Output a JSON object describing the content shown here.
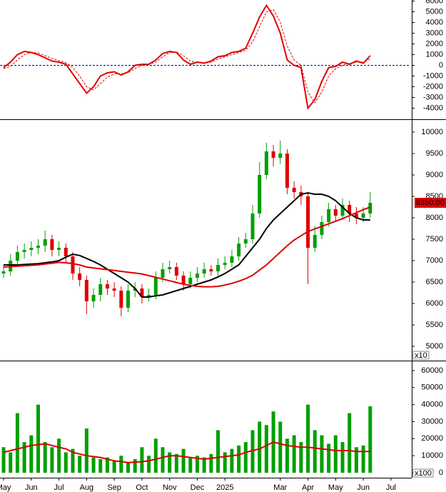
{
  "chart_data": [
    {
      "type": "line",
      "x": [
        0,
        0.25,
        0.5,
        0.75,
        1,
        1.25,
        1.5,
        1.75,
        2,
        2.25,
        2.5,
        2.75,
        3,
        3.25,
        3.5,
        3.75,
        4,
        4.25,
        4.5,
        4.75,
        5,
        5.25,
        5.5,
        5.75,
        6,
        6.25,
        6.5,
        6.75,
        7,
        7.25,
        7.5,
        7.75,
        8,
        8.25,
        8.5,
        8.75,
        9,
        9.25,
        9.5,
        9.75,
        10,
        10.25,
        10.5,
        10.75,
        11,
        11.25,
        11.5,
        11.75,
        12,
        12.25,
        12.5,
        12.75,
        13,
        13.25
      ],
      "xlim": [
        -0.13,
        14.7
      ],
      "ylim": [
        -4900,
        6100
      ],
      "yticks": [
        6000,
        5000,
        4000,
        3000,
        2000,
        1000,
        0,
        -1000,
        -2000,
        -3000,
        -4000
      ],
      "zero_line_color": "#0000cc",
      "series": [
        {
          "color": "#e00000",
          "values": [
            -200,
            300,
            1000,
            1300,
            1200,
            1000,
            700,
            400,
            300,
            100,
            -800,
            -1700,
            -2600,
            -2000,
            -1000,
            -700,
            -600,
            -900,
            -600,
            0,
            100,
            100,
            500,
            1100,
            1300,
            1200,
            500,
            100,
            300,
            200,
            400,
            800,
            900,
            1200,
            1300,
            1600,
            3000,
            4500,
            5600,
            4600,
            3000,
            500,
            0,
            -200,
            -4000,
            -3200,
            -1500,
            -200,
            -100,
            300,
            100,
            400,
            200,
            900
          ]
        },
        {
          "color": "#e00000",
          "dashed": true,
          "values": [
            -300,
            -100,
            500,
            1000,
            1200,
            1150,
            900,
            650,
            450,
            250,
            -200,
            -1000,
            -2000,
            -2300,
            -1700,
            -1100,
            -800,
            -800,
            -700,
            -300,
            0,
            100,
            300,
            800,
            1200,
            1250,
            900,
            400,
            250,
            200,
            300,
            600,
            800,
            1000,
            1200,
            1400,
            2200,
            3600,
            5000,
            5200,
            4000,
            1800,
            500,
            0,
            -2500,
            -3500,
            -2500,
            -1000,
            -300,
            0,
            200,
            300,
            300,
            600
          ]
        }
      ]
    },
    {
      "type": "candlestick",
      "x": [
        0,
        0.25,
        0.5,
        0.75,
        1,
        1.25,
        1.5,
        1.75,
        2,
        2.25,
        2.5,
        2.75,
        3,
        3.25,
        3.5,
        3.75,
        4,
        4.25,
        4.5,
        4.75,
        5,
        5.25,
        5.5,
        5.75,
        6,
        6.25,
        6.5,
        6.75,
        7,
        7.25,
        7.5,
        7.75,
        8,
        8.25,
        8.5,
        8.75,
        9,
        9.25,
        9.5,
        9.75,
        10,
        10.25,
        10.5,
        10.75,
        11,
        11.25,
        11.5,
        11.75,
        12,
        12.25,
        12.5,
        12.75,
        13,
        13.25
      ],
      "xlim": [
        -0.13,
        14.7
      ],
      "ylim": [
        4700,
        10250
      ],
      "yticks": [
        10000,
        9500,
        9000,
        8500,
        8000,
        7500,
        7000,
        6500,
        6000,
        5500,
        5000
      ],
      "up_color": "#00a000",
      "down_color": "#e00000",
      "open": [
        6700,
        6750,
        7000,
        7200,
        7250,
        7300,
        7350,
        7500,
        7250,
        7300,
        7100,
        6700,
        6550,
        6050,
        6200,
        6450,
        6350,
        6300,
        5900,
        6300,
        6350,
        6150,
        6200,
        6600,
        6800,
        6850,
        6650,
        6450,
        6600,
        6700,
        6800,
        6750,
        6900,
        6950,
        7100,
        7400,
        7500,
        8100,
        9000,
        9550,
        9400,
        9500,
        8700,
        8600,
        8500,
        7300,
        7600,
        7900,
        8200,
        8050,
        8300,
        8100,
        8000,
        8100
      ],
      "high": [
        6900,
        7150,
        7350,
        7400,
        7450,
        7500,
        7700,
        7600,
        7450,
        7400,
        7200,
        6850,
        6650,
        6350,
        6600,
        6550,
        6500,
        6400,
        6450,
        6500,
        6450,
        6350,
        6750,
        6950,
        7000,
        6950,
        6750,
        6750,
        6850,
        6950,
        6900,
        7050,
        7100,
        7250,
        7550,
        7650,
        8300,
        9300,
        9750,
        9700,
        9800,
        9600,
        8850,
        8750,
        8600,
        7800,
        8050,
        8350,
        8300,
        8450,
        8400,
        8250,
        8250,
        8600
      ],
      "low": [
        6600,
        6650,
        6850,
        7050,
        7100,
        7150,
        7200,
        7100,
        7100,
        6950,
        6550,
        6400,
        5750,
        5900,
        6050,
        6200,
        6150,
        5700,
        5800,
        6150,
        6000,
        6050,
        6100,
        6500,
        6700,
        6550,
        6300,
        6350,
        6500,
        6600,
        6650,
        6650,
        6800,
        6850,
        7000,
        7300,
        7400,
        8000,
        8900,
        9200,
        9250,
        8550,
        8450,
        8300,
        6450,
        7200,
        7500,
        7800,
        7900,
        7950,
        7900,
        7850,
        7900,
        8000
      ],
      "close": [
        6750,
        7000,
        7200,
        7250,
        7300,
        7350,
        7500,
        7250,
        7300,
        7100,
        6700,
        6550,
        6050,
        6200,
        6450,
        6350,
        6300,
        5900,
        6300,
        6350,
        6150,
        6200,
        6600,
        6800,
        6850,
        6650,
        6450,
        6600,
        6700,
        6800,
        6750,
        6900,
        6950,
        7100,
        7400,
        7500,
        8100,
        9000,
        9550,
        9400,
        9500,
        8700,
        8600,
        8500,
        7300,
        7600,
        7900,
        8200,
        8050,
        8300,
        8100,
        8000,
        8100,
        8350
      ],
      "series": [
        {
          "color": "#000000",
          "values": [
            6900,
            6900,
            6900,
            6910,
            6920,
            6930,
            6950,
            6970,
            7000,
            7080,
            7150,
            7120,
            7050,
            6980,
            6900,
            6800,
            6700,
            6600,
            6500,
            6350,
            6150,
            6150,
            6180,
            6200,
            6250,
            6300,
            6350,
            6400,
            6450,
            6500,
            6550,
            6620,
            6700,
            6800,
            6900,
            7100,
            7300,
            7500,
            7750,
            7950,
            8100,
            8250,
            8400,
            8550,
            8580,
            8550,
            8550,
            8500,
            8400,
            8250,
            8100,
            8000,
            7950,
            7950
          ]
        },
        {
          "color": "#e00000",
          "values": [
            6850,
            6860,
            6870,
            6880,
            6890,
            6900,
            6920,
            6940,
            6960,
            6950,
            6930,
            6900,
            6850,
            6830,
            6810,
            6790,
            6770,
            6750,
            6730,
            6710,
            6690,
            6650,
            6610,
            6570,
            6530,
            6490,
            6450,
            6420,
            6400,
            6390,
            6390,
            6400,
            6430,
            6470,
            6520,
            6580,
            6660,
            6780,
            6900,
            7050,
            7200,
            7350,
            7480,
            7580,
            7680,
            7740,
            7800,
            7860,
            7920,
            7980,
            8050,
            8120,
            8190,
            8250
          ]
        }
      ],
      "last_price_label": "8350.00",
      "y_multiplier": "x10"
    },
    {
      "type": "bar",
      "x": [
        0,
        0.25,
        0.5,
        0.75,
        1,
        1.25,
        1.5,
        1.75,
        2,
        2.25,
        2.5,
        2.75,
        3,
        3.25,
        3.5,
        3.75,
        4,
        4.25,
        4.5,
        4.75,
        5,
        5.25,
        5.5,
        5.75,
        6,
        6.25,
        6.5,
        6.75,
        7,
        7.25,
        7.5,
        7.75,
        8,
        8.25,
        8.5,
        8.75,
        9,
        9.25,
        9.5,
        9.75,
        10,
        10.25,
        10.5,
        10.75,
        11,
        11.25,
        11.5,
        11.75,
        12,
        12.25,
        12.5,
        12.75,
        13,
        13.25
      ],
      "xlim": [
        -0.13,
        14.7
      ],
      "ylim": [
        -2500,
        65000
      ],
      "yticks": [
        60000,
        50000,
        40000,
        30000,
        20000,
        10000,
        0
      ],
      "color": "#00a000",
      "values": [
        15000,
        12000,
        35000,
        18000,
        22000,
        40000,
        18000,
        15000,
        20000,
        12000,
        14000,
        10000,
        26000,
        9000,
        8000,
        9000,
        7000,
        10000,
        6000,
        8000,
        15000,
        10000,
        20000,
        15000,
        12000,
        11000,
        14000,
        9000,
        10000,
        9000,
        11000,
        25000,
        12000,
        14000,
        16000,
        18000,
        25000,
        30000,
        28000,
        36000,
        30000,
        20000,
        22000,
        18000,
        40000,
        25000,
        22000,
        17000,
        22000,
        18000,
        35000,
        15000,
        16000,
        39000
      ],
      "series": [
        {
          "color": "#e00000",
          "values": [
            12000,
            13000,
            14000,
            15000,
            16000,
            16500,
            17000,
            16000,
            15000,
            14000,
            12000,
            11000,
            10000,
            9500,
            9000,
            8000,
            7000,
            6500,
            6000,
            6200,
            6500,
            7000,
            8000,
            9000,
            10000,
            10000,
            9500,
            9000,
            8500,
            8000,
            8500,
            9000,
            9500,
            10000,
            10500,
            12000,
            13000,
            14000,
            16000,
            18000,
            17000,
            16000,
            15500,
            15000,
            15000,
            14500,
            14000,
            13500,
            13000,
            13000,
            13000,
            12500,
            12500,
            12500
          ]
        }
      ],
      "y_multiplier": "x100",
      "xticks": [
        {
          "value": 0,
          "label": "May"
        },
        {
          "value": 1,
          "label": "Jun"
        },
        {
          "value": 2,
          "label": "Jul"
        },
        {
          "value": 3,
          "label": "Aug"
        },
        {
          "value": 4,
          "label": "Sep"
        },
        {
          "value": 5,
          "label": "Oct"
        },
        {
          "value": 6,
          "label": "Nov"
        },
        {
          "value": 7,
          "label": "Dec"
        },
        {
          "value": 8,
          "label": "2025"
        },
        {
          "value": 10,
          "label": "Mar"
        },
        {
          "value": 11,
          "label": "Apr"
        },
        {
          "value": 12,
          "label": "May"
        },
        {
          "value": 13,
          "label": "Jun"
        },
        {
          "value": 14,
          "label": "Jul"
        }
      ]
    }
  ]
}
